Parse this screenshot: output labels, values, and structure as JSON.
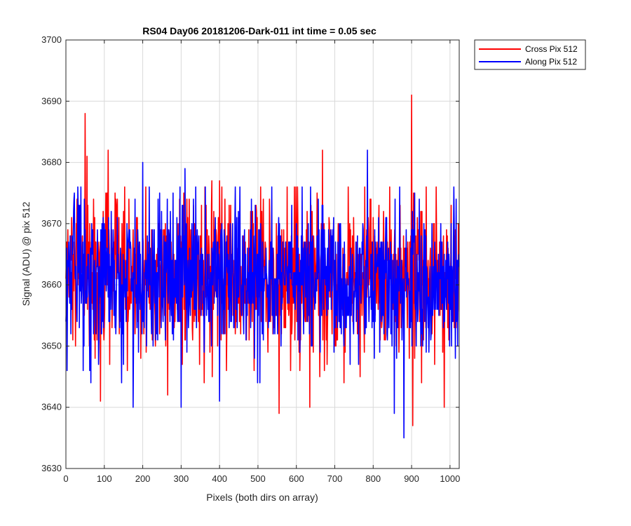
{
  "chart_data": {
    "type": "line",
    "title": "RS04 Day06 20181206-Dark-011 int time = 0.05 sec",
    "xlabel": "Pixels (both dirs on array)",
    "ylabel": "Signal (ADU) @ pix 512",
    "xlim": [
      0,
      1024
    ],
    "ylim": [
      3630,
      3700
    ],
    "xticks": [
      0,
      100,
      200,
      300,
      400,
      500,
      600,
      700,
      800,
      900,
      1000
    ],
    "yticks": [
      3630,
      3640,
      3650,
      3660,
      3670,
      3680,
      3690,
      3700
    ],
    "grid": true,
    "legend_position": "outside-top-right",
    "series": [
      {
        "name": "Cross Pix 512",
        "color": "#ff0000",
        "noise": {
          "mean": 3661,
          "sd": 6.5,
          "seed": 12345,
          "n": 1024
        },
        "spikes": [
          [
            2,
            3667
          ],
          [
            50,
            3688
          ],
          [
            55,
            3681
          ],
          [
            90,
            3641
          ],
          [
            110,
            3682
          ],
          [
            250,
            3669
          ],
          [
            265,
            3642
          ],
          [
            270,
            3668
          ],
          [
            305,
            3672
          ],
          [
            380,
            3677
          ],
          [
            400,
            3677
          ],
          [
            555,
            3639
          ],
          [
            635,
            3640
          ],
          [
            668,
            3682
          ],
          [
            900,
            3691
          ],
          [
            903,
            3637
          ],
          [
            985,
            3640
          ]
        ]
      },
      {
        "name": "Along Pix 512",
        "color": "#0000ff",
        "noise": {
          "mean": 3661,
          "sd": 6.0,
          "seed": 67890,
          "n": 1024
        },
        "spikes": [
          [
            3,
            3646
          ],
          [
            45,
            3646
          ],
          [
            175,
            3640
          ],
          [
            200,
            3680
          ],
          [
            240,
            3674
          ],
          [
            300,
            3640
          ],
          [
            310,
            3679
          ],
          [
            400,
            3641
          ],
          [
            560,
            3650
          ],
          [
            740,
            3647
          ],
          [
            785,
            3682
          ],
          [
            855,
            3639
          ],
          [
            880,
            3635
          ],
          [
            920,
            3674
          ]
        ]
      }
    ]
  }
}
